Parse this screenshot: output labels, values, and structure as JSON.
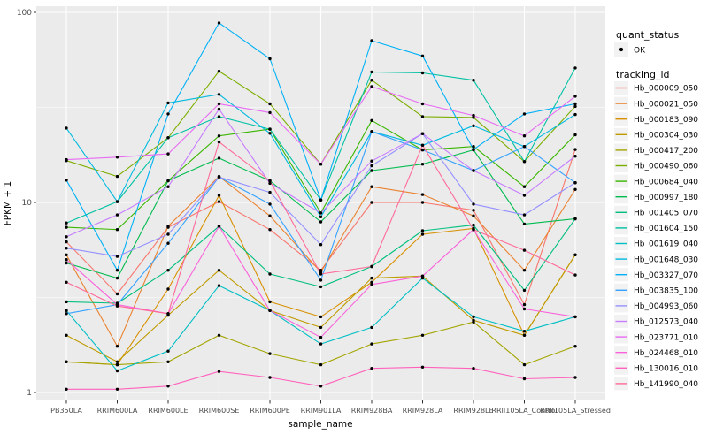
{
  "figure": {
    "background": "#ffffff",
    "panel_background": "#EBEBEB",
    "grid_color": "#FFFFFF",
    "tick_label_color": "#4D4D4D",
    "legend_key_background": "#F2F2F2",
    "point_color": "#000000"
  },
  "legend": {
    "quant_status_title": "quant_status",
    "quant_status_items": [
      {
        "label": "OK",
        "marker": "point"
      }
    ],
    "tracking_title": "tracking_id"
  },
  "chart_data": {
    "type": "line",
    "title": "",
    "xlabel": "sample_name",
    "ylabel": "FPKM + 1",
    "y_scale": "log10",
    "ylim": [
      1,
      100
    ],
    "y_tick_labels": [
      "1",
      "10",
      "100"
    ],
    "y_major_ticks": [
      1,
      10,
      100
    ],
    "y_minor_gridlines": [
      3.162,
      31.62
    ],
    "grid": true,
    "legend_position": "right",
    "categories": [
      "PB350LA",
      "RRIM600LA",
      "RRIM600LE",
      "RRIM600SE",
      "RRIM600PE",
      "RRIM901LA",
      "RRIM928BA",
      "RRIM928LA",
      "RRIM928LE",
      "RRII105LA_Control",
      "RRII105LA_Stressed"
    ],
    "series": [
      {
        "name": "Hb_000009_050",
        "color": "#F8766D",
        "values": [
          6.2,
          3.3,
          7.4,
          10.1,
          7.2,
          4.4,
          10.0,
          10.0,
          9.1,
          2.9,
          19.0
        ]
      },
      {
        "name": "Hb_000021_050",
        "color": "#EA8331",
        "values": [
          5.3,
          1.75,
          7.5,
          13.7,
          8.5,
          4.3,
          12.1,
          11.0,
          8.5,
          4.4,
          11.7
        ]
      },
      {
        "name": "Hb_000183_090",
        "color": "#D89000",
        "values": [
          1.45,
          1.4,
          3.5,
          10.9,
          3.0,
          2.5,
          3.8,
          6.8,
          7.3,
          2.0,
          5.3
        ]
      },
      {
        "name": "Hb_000304_030",
        "color": "#C09B00",
        "values": [
          2.0,
          1.45,
          2.55,
          4.4,
          2.7,
          2.2,
          4.0,
          4.1,
          2.4,
          2.0,
          5.3
        ]
      },
      {
        "name": "Hb_000417_200",
        "color": "#A3A500",
        "values": [
          1.45,
          1.4,
          1.45,
          2.0,
          1.6,
          1.4,
          1.8,
          2.0,
          2.35,
          1.4,
          1.75
        ]
      },
      {
        "name": "Hb_000490_060",
        "color": "#7CAE00",
        "values": [
          16.6,
          13.7,
          21.9,
          49.0,
          33.0,
          15.9,
          44.0,
          28.3,
          28.0,
          16.4,
          32.0
        ]
      },
      {
        "name": "Hb_000684_040",
        "color": "#39B600",
        "values": [
          7.4,
          7.2,
          13.0,
          22.4,
          24.3,
          8.8,
          27.0,
          18.9,
          19.7,
          12.1,
          22.7
        ]
      },
      {
        "name": "Hb_000997_180",
        "color": "#00BB4E",
        "values": [
          4.8,
          4.0,
          13.0,
          17.1,
          13.0,
          7.9,
          14.7,
          15.9,
          18.9,
          7.7,
          8.2
        ]
      },
      {
        "name": "Hb_001405_070",
        "color": "#00BF7D",
        "values": [
          3.0,
          2.95,
          4.4,
          7.5,
          4.2,
          3.6,
          4.6,
          7.1,
          7.6,
          3.45,
          8.2
        ]
      },
      {
        "name": "Hb_001604_150",
        "color": "#00C1A3",
        "values": [
          7.8,
          10.1,
          21.9,
          28.3,
          24.3,
          10.3,
          48.6,
          48.0,
          44.0,
          16.4,
          51.0
        ]
      },
      {
        "name": "Hb_001619_040",
        "color": "#00BFC4",
        "values": [
          2.7,
          1.3,
          1.65,
          3.65,
          2.7,
          1.8,
          2.2,
          4.0,
          2.5,
          2.1,
          2.5
        ]
      },
      {
        "name": "Hb_001648_030",
        "color": "#00BAE0",
        "values": [
          24.6,
          10.1,
          33.4,
          37.0,
          23.1,
          8.4,
          23.6,
          20.0,
          25.3,
          19.7,
          29.0
        ]
      },
      {
        "name": "Hb_003327_070",
        "color": "#00B0F6",
        "values": [
          13.1,
          4.4,
          29.2,
          88.0,
          57.0,
          10.3,
          71.0,
          59.0,
          19.0,
          29.2,
          33.0
        ]
      },
      {
        "name": "Hb_003835_100",
        "color": "#35A2FF",
        "values": [
          2.6,
          2.9,
          6.1,
          13.6,
          9.8,
          3.9,
          23.6,
          18.9,
          14.7,
          19.7,
          12.7
        ]
      },
      {
        "name": "Hb_004993_060",
        "color": "#9590FF",
        "values": [
          5.75,
          5.2,
          6.8,
          13.6,
          11.3,
          6.0,
          15.6,
          23.0,
          9.8,
          8.6,
          12.7
        ]
      },
      {
        "name": "Hb_012573_040",
        "color": "#C77CFF",
        "values": [
          6.6,
          8.6,
          12.1,
          31.0,
          12.6,
          8.8,
          16.5,
          23.0,
          14.7,
          10.9,
          17.5
        ]
      },
      {
        "name": "Hb_023771_010",
        "color": "#E76BF3",
        "values": [
          16.8,
          17.3,
          18.0,
          33.0,
          29.7,
          15.9,
          40.7,
          33.0,
          28.7,
          22.4,
          36.2
        ]
      },
      {
        "name": "Hb_024468_010",
        "color": "#FA62DB",
        "values": [
          5.0,
          2.9,
          2.6,
          7.5,
          2.7,
          1.95,
          3.7,
          4.1,
          7.2,
          2.75,
          2.5
        ]
      },
      {
        "name": "Hb_130016_010",
        "color": "#FF62BC",
        "values": [
          1.04,
          1.04,
          1.08,
          1.29,
          1.2,
          1.08,
          1.34,
          1.36,
          1.34,
          1.18,
          1.2
        ]
      },
      {
        "name": "Hb_141990_040",
        "color": "#FF6A98",
        "values": [
          3.8,
          2.85,
          2.6,
          20.8,
          13.0,
          4.2,
          4.6,
          20.0,
          7.2,
          5.6,
          4.15
        ]
      }
    ]
  }
}
